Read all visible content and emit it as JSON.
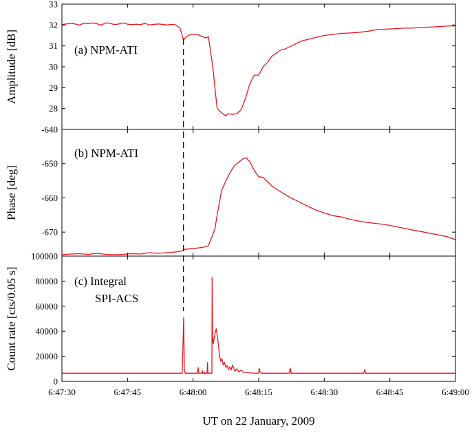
{
  "chart_data": {
    "type": "line",
    "xlabel": "UT on 22 January, 2009",
    "x_ticks": [
      "6:47:30",
      "6:47:45",
      "6:48:00",
      "6:48:15",
      "6:48:30",
      "6:48:45",
      "6:49:00"
    ],
    "x_tick_seconds": [
      0,
      15,
      30,
      45,
      60,
      75,
      90
    ],
    "xlim_seconds": [
      0,
      90
    ],
    "x_origin": "6:47:30",
    "event_marker_seconds": 27.8,
    "line_color": "#e8141c",
    "panels": [
      {
        "id": "amplitude",
        "label_lines": [
          "(a) NPM-ATI"
        ],
        "ylabel": "Amplitude [dB]",
        "ylim": [
          27,
          33
        ],
        "yticks": [
          "28",
          "29",
          "30",
          "31",
          "32",
          "33"
        ],
        "ytick_values": [
          28,
          29,
          30,
          31,
          32,
          33
        ],
        "series": [
          {
            "name": "NPM-ATI amplitude",
            "x": [
              0,
              1,
              2,
              3,
              4,
              5,
              6,
              7,
              8,
              9,
              10,
              11,
              12,
              13,
              14,
              15,
              16,
              17,
              18,
              19,
              20,
              21,
              22,
              23,
              24,
              25,
              26,
              27,
              27.8,
              28.5,
              29.5,
              31,
              32,
              33,
              33.5,
              34.5,
              35.5,
              36.5,
              37.5,
              38,
              39,
              40,
              41,
              42,
              43,
              44,
              45,
              46,
              47,
              48,
              49,
              50,
              51,
              52,
              53,
              54,
              55,
              56,
              57,
              58,
              59,
              60,
              62,
              64,
              66,
              68,
              70,
              72,
              74,
              76,
              78,
              80,
              82,
              84,
              86,
              88,
              90
            ],
            "y": [
              32.02,
              32.05,
              32.08,
              32.05,
              32.0,
              32.08,
              32.06,
              32.1,
              32.06,
              32.0,
              32.1,
              32.08,
              32.02,
              32.05,
              32.1,
              32.04,
              32.02,
              32.04,
              32.02,
              32.08,
              32.0,
              32.03,
              32.05,
              32.03,
              32.0,
              32.03,
              32.01,
              31.85,
              31.28,
              31.45,
              31.55,
              31.55,
              31.45,
              31.38,
              31.45,
              30.0,
              28.0,
              27.8,
              27.65,
              27.75,
              27.72,
              27.75,
              27.95,
              28.5,
              29.2,
              29.6,
              29.6,
              30.0,
              30.2,
              30.5,
              30.65,
              30.8,
              30.85,
              30.95,
              31.05,
              31.15,
              31.25,
              31.3,
              31.35,
              31.4,
              31.45,
              31.5,
              31.55,
              31.6,
              31.62,
              31.65,
              31.7,
              31.78,
              31.8,
              31.82,
              31.85,
              31.85,
              31.88,
              31.9,
              31.92,
              31.95,
              31.96
            ]
          }
        ]
      },
      {
        "id": "phase",
        "label_lines": [
          "(b) NPM-ATI"
        ],
        "ylabel": "Phase [deg]",
        "ylim": [
          -677,
          -640
        ],
        "yticks": [
          "-640",
          "-650",
          "-660",
          "-670"
        ],
        "ytick_values": [
          -640,
          -650,
          -660,
          -670
        ],
        "series": [
          {
            "name": "NPM-ATI phase",
            "x": [
              0,
              2,
              4,
              6,
              8,
              10,
              12,
              14,
              16,
              18,
              20,
              22,
              24,
              26,
              27.5,
              28.2,
              30,
              32,
              33.5,
              35,
              35.5,
              36.5,
              37.5,
              38.5,
              39.5,
              40.5,
              41.5,
              42.2,
              43,
              44,
              45,
              46,
              48,
              50,
              52,
              54,
              56,
              58,
              60,
              62,
              64,
              66,
              68,
              70,
              72,
              74,
              76,
              78,
              80,
              82,
              84,
              86,
              88,
              90
            ],
            "y": [
              -676.6,
              -676.4,
              -676.3,
              -676.5,
              -676.2,
              -676.5,
              -676.6,
              -676.5,
              -676.3,
              -676.4,
              -676.0,
              -676.2,
              -676.0,
              -675.8,
              -675.5,
              -675.0,
              -674.8,
              -674.5,
              -674.0,
              -669.0,
              -665.0,
              -658.0,
              -655.0,
              -652.5,
              -650.5,
              -649.5,
              -648.5,
              -648.3,
              -649.5,
              -652.0,
              -653.8,
              -654.0,
              -656.5,
              -658.2,
              -659.8,
              -661.0,
              -662.3,
              -663.5,
              -664.4,
              -665.2,
              -665.6,
              -666.3,
              -666.8,
              -667.2,
              -667.5,
              -667.8,
              -668.3,
              -668.8,
              -669.3,
              -669.8,
              -670.3,
              -670.8,
              -671.3,
              -672.2
            ]
          }
        ]
      },
      {
        "id": "countrate",
        "label_lines": [
          "(c) Integral",
          "SPI-ACS"
        ],
        "ylabel": "Count rate [cts/0.05 s]",
        "ylim": [
          0,
          100000
        ],
        "yticks": [
          "0",
          "20000",
          "40000",
          "60000",
          "80000",
          "100000"
        ],
        "ytick_values": [
          0,
          20000,
          40000,
          60000,
          80000,
          100000
        ],
        "series": [
          {
            "name": "SPI-ACS count rate",
            "x": [
              0,
              27.5,
              27.7,
              27.85,
              28.0,
              28.2,
              31.0,
              31.15,
              31.3,
              32.0,
              32.1,
              32.2,
              32.5,
              32.6,
              32.7,
              33.2,
              33.3,
              33.4,
              33.8,
              33.9,
              34.0,
              34.3,
              34.35,
              34.45,
              34.6,
              35.0,
              35.3,
              35.7,
              36.0,
              36.3,
              36.6,
              36.9,
              37.2,
              37.5,
              37.8,
              38.1,
              38.4,
              38.7,
              39.0,
              39.3,
              39.6,
              40.0,
              40.5,
              41.0,
              41.5,
              42.0,
              43.0,
              44.0,
              45.0,
              45.1,
              45.3,
              45.6,
              52.0,
              52.1,
              52.25,
              52.4,
              69.0,
              69.15,
              69.3,
              69.45,
              90
            ],
            "y": [
              6500,
              6500,
              30000,
              51000,
              9000,
              6500,
              6500,
              11000,
              6500,
              6500,
              8500,
              6500,
              6500,
              7500,
              6500,
              6500,
              15000,
              6500,
              6500,
              6800,
              6500,
              6500,
              83000,
              35000,
              30000,
              38000,
              42000,
              32000,
              22000,
              16000,
              18000,
              13000,
              15000,
              11000,
              12500,
              9500,
              11500,
              9000,
              13000,
              10500,
              8000,
              10000,
              7500,
              9000,
              7200,
              7000,
              6800,
              6600,
              6500,
              10500,
              7500,
              6500,
              6500,
              8500,
              10500,
              6500,
              6500,
              8000,
              9500,
              6500,
              6500
            ]
          }
        ]
      }
    ]
  }
}
